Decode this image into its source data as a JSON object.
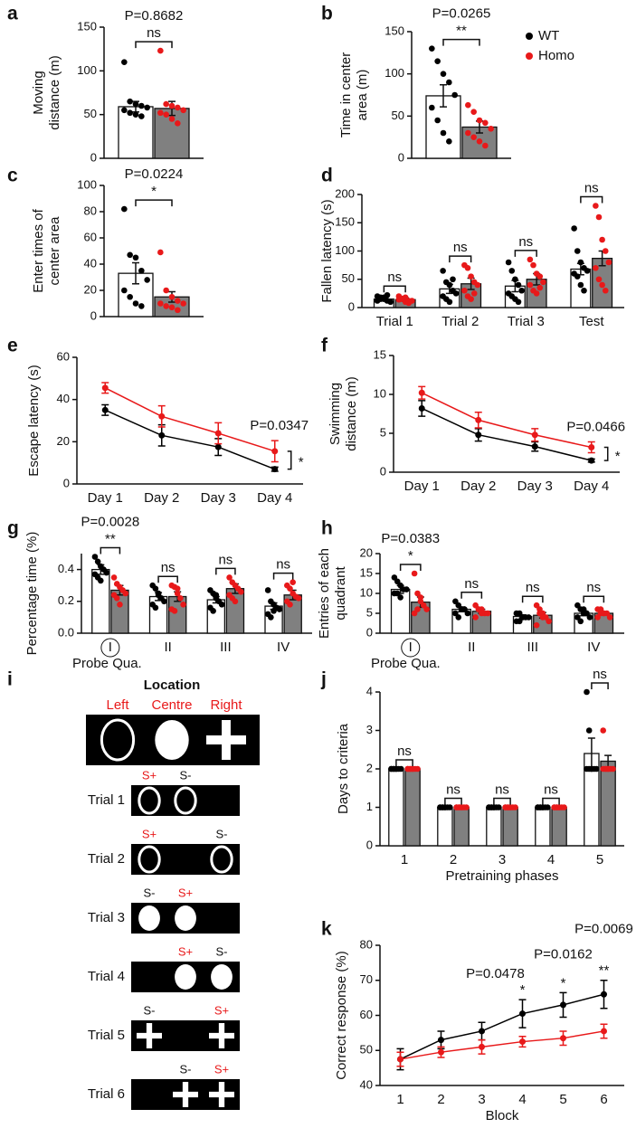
{
  "chart_data": [
    {
      "panel": "a",
      "type": "bar",
      "ylabel": [
        "Moving",
        "distance (m)"
      ],
      "categories": [
        null
      ],
      "ylim": [
        0,
        150
      ],
      "yticks": [
        0,
        50,
        100,
        150
      ],
      "legend": false,
      "series": [
        {
          "name": "WT",
          "color": "#000000",
          "bar_color": "#ffffff",
          "values": [
            59
          ],
          "errors": [
            6
          ],
          "points": [
            [
              110,
              65,
              62,
              60,
              58,
              55,
              52,
              50,
              48
            ]
          ]
        },
        {
          "name": "Homo",
          "color": "#e8191a",
          "bar_color": "#808080",
          "values": [
            57
          ],
          "errors": [
            8
          ],
          "points": [
            [
              123,
              62,
              60,
              58,
              55,
              52,
              50,
              45,
              40
            ]
          ]
        }
      ],
      "brackets": [
        {
          "p": "P=0.8682",
          "label": "ns"
        }
      ]
    },
    {
      "panel": "b",
      "type": "bar",
      "ylabel": [
        "Time in center",
        "area (m)"
      ],
      "categories": [
        null
      ],
      "ylim": [
        0,
        150
      ],
      "yticks": [
        0,
        50,
        100,
        150
      ],
      "legend": true,
      "series": [
        {
          "name": "WT",
          "color": "#000000",
          "bar_color": "#ffffff",
          "values": [
            74
          ],
          "errors": [
            13
          ],
          "points": [
            [
              130,
              115,
              100,
              90,
              75,
              60,
              45,
              30,
              20
            ]
          ]
        },
        {
          "name": "Homo",
          "color": "#e8191a",
          "bar_color": "#808080",
          "values": [
            37
          ],
          "errors": [
            7
          ],
          "points": [
            [
              63,
              55,
              45,
              42,
              35,
              30,
              25,
              20,
              15
            ]
          ]
        }
      ],
      "brackets": [
        {
          "p": "P=0.0265",
          "label": "**"
        }
      ]
    },
    {
      "panel": "c",
      "type": "bar",
      "ylabel": [
        "Enter times of",
        "center area"
      ],
      "categories": [
        null
      ],
      "ylim": [
        0,
        100
      ],
      "yticks": [
        0,
        20,
        40,
        60,
        80,
        100
      ],
      "legend": false,
      "series": [
        {
          "name": "WT",
          "color": "#000000",
          "bar_color": "#ffffff",
          "values": [
            33
          ],
          "errors": [
            8
          ],
          "points": [
            [
              82,
              47,
              45,
              35,
              28,
              20,
              15,
              10,
              8
            ]
          ]
        },
        {
          "name": "Homo",
          "color": "#e8191a",
          "bar_color": "#808080",
          "values": [
            15
          ],
          "errors": [
            4
          ],
          "points": [
            [
              49,
              20,
              15,
              12,
              10,
              10,
              8,
              7,
              5
            ]
          ]
        }
      ],
      "brackets": [
        {
          "p": "P=0.0224",
          "label": "*"
        }
      ]
    },
    {
      "panel": "d",
      "type": "bar",
      "ylabel": [
        "Fallen latency (s)"
      ],
      "categories": [
        "Trial 1",
        "Trial 2",
        "Trial 3",
        "Test"
      ],
      "ylim": [
        0,
        200
      ],
      "yticks": [
        0,
        50,
        100,
        150,
        200
      ],
      "legend": false,
      "series": [
        {
          "name": "WT",
          "color": "#000000",
          "bar_color": "#ffffff",
          "values": [
            15,
            33,
            38,
            68
          ],
          "errors": [
            3,
            8,
            10,
            10
          ],
          "points": [
            [
              20,
              18,
              15,
              12,
              10,
              12,
              15,
              18,
              22
            ],
            [
              65,
              45,
              40,
              30,
              25,
              20,
              15,
              10,
              50
            ],
            [
              80,
              65,
              50,
              40,
              30,
              25,
              20,
              15,
              10
            ],
            [
              140,
              100,
              80,
              70,
              65,
              60,
              55,
              40,
              30
            ]
          ]
        },
        {
          "name": "Homo",
          "color": "#e8191a",
          "bar_color": "#808080",
          "values": [
            14,
            42,
            50,
            87
          ],
          "errors": [
            3,
            10,
            10,
            13
          ],
          "points": [
            [
              20,
              15,
              10,
              8,
              12,
              14,
              16,
              18,
              12
            ],
            [
              75,
              70,
              55,
              45,
              40,
              30,
              20,
              15,
              25
            ],
            [
              85,
              75,
              60,
              55,
              45,
              40,
              30,
              25,
              35
            ],
            [
              180,
              160,
              120,
              100,
              80,
              70,
              50,
              40,
              30
            ]
          ]
        }
      ],
      "brackets": [
        {
          "label": "ns"
        },
        {
          "label": "ns"
        },
        {
          "label": "ns"
        },
        {
          "label": "ns"
        }
      ]
    },
    {
      "panel": "e",
      "type": "line",
      "ylabel": [
        "Escape latency (s)"
      ],
      "categories": [
        "Day 1",
        "Day 2",
        "Day 3",
        "Day 4"
      ],
      "ylim": [
        0,
        60
      ],
      "yticks": [
        0,
        20,
        40,
        60
      ],
      "legend": false,
      "series": [
        {
          "name": "WT",
          "color": "#000000",
          "values": [
            35,
            23,
            17.5,
            7
          ],
          "errors": [
            2.5,
            5,
            4,
            1
          ]
        },
        {
          "name": "Homo",
          "color": "#e8191a",
          "values": [
            45.5,
            32,
            24,
            15.5
          ],
          "errors": [
            2.5,
            5,
            5,
            5
          ]
        }
      ],
      "comparison": {
        "p": "P=0.0347",
        "label": "*"
      }
    },
    {
      "panel": "f",
      "type": "line",
      "ylabel": [
        "Swimming",
        "distance (m)"
      ],
      "categories": [
        "Day 1",
        "Day 2",
        "Day 3",
        "Day 4"
      ],
      "ylim": [
        0,
        15
      ],
      "yticks": [
        0,
        5,
        10,
        15
      ],
      "legend": false,
      "series": [
        {
          "name": "WT",
          "color": "#000000",
          "values": [
            8.2,
            4.8,
            3.3,
            1.5
          ],
          "errors": [
            1,
            0.8,
            0.6,
            0.2
          ]
        },
        {
          "name": "Homo",
          "color": "#e8191a",
          "values": [
            10.2,
            6.7,
            4.8,
            3.2
          ],
          "errors": [
            0.8,
            1,
            0.8,
            0.7
          ]
        }
      ],
      "comparison": {
        "p": "P=0.0466",
        "label": "*"
      }
    },
    {
      "panel": "g",
      "type": "bar",
      "ylabel": [
        "Percentage time (%)"
      ],
      "xlabel": "Probe Qua.",
      "categories": [
        "I",
        "II",
        "III",
        "IV"
      ],
      "circled": [
        true,
        false,
        false,
        false
      ],
      "ylim": [
        0,
        0.5
      ],
      "yticks": [
        {
          "value": 0,
          "label": "0.0"
        },
        0.2,
        0.4
      ],
      "legend": false,
      "series": [
        {
          "name": "WT",
          "color": "#000000",
          "bar_color": "#ffffff",
          "values": [
            0.4,
            0.23,
            0.21,
            0.17
          ],
          "errors": [
            0.03,
            0.025,
            0.02,
            0.02
          ],
          "points": [
            [
              0.48,
              0.45,
              0.42,
              0.4,
              0.38,
              0.37,
              0.35,
              0.33
            ],
            [
              0.3,
              0.28,
              0.25,
              0.22,
              0.2,
              0.18,
              0.16,
              0.24
            ],
            [
              0.27,
              0.25,
              0.22,
              0.2,
              0.18,
              0.16,
              0.14,
              0.24
            ],
            [
              0.27,
              0.2,
              0.18,
              0.16,
              0.15,
              0.12,
              0.1,
              0.14
            ]
          ]
        },
        {
          "name": "Homo",
          "color": "#e8191a",
          "bar_color": "#808080",
          "values": [
            0.27,
            0.23,
            0.28,
            0.24
          ],
          "errors": [
            0.03,
            0.03,
            0.03,
            0.03
          ],
          "points": [
            [
              0.35,
              0.31,
              0.29,
              0.27,
              0.25,
              0.24,
              0.22,
              0.18
            ],
            [
              0.3,
              0.29,
              0.25,
              0.22,
              0.18,
              0.15,
              0.14,
              0.28
            ],
            [
              0.35,
              0.32,
              0.3,
              0.28,
              0.26,
              0.24,
              0.22,
              0.2
            ],
            [
              0.3,
              0.28,
              0.25,
              0.23,
              0.22,
              0.2,
              0.18,
              0.32
            ]
          ]
        }
      ],
      "brackets": [
        {
          "p": "P=0.0028",
          "label": "**"
        },
        {
          "label": "ns"
        },
        {
          "label": "ns"
        },
        {
          "label": "ns"
        }
      ]
    },
    {
      "panel": "h",
      "type": "bar",
      "ylabel": [
        "Entries of each",
        "quadrant"
      ],
      "xlabel": "Probe Qua.",
      "categories": [
        "I",
        "II",
        "III",
        "IV"
      ],
      "circled": [
        true,
        false,
        false,
        false
      ],
      "ylim": [
        0,
        20
      ],
      "yticks": [
        0,
        5,
        10,
        15,
        20
      ],
      "legend": false,
      "series": [
        {
          "name": "WT",
          "color": "#000000",
          "bar_color": "#ffffff",
          "values": [
            11,
            6,
            4.2,
            5
          ],
          "errors": [
            1,
            0.6,
            0.4,
            0.6
          ],
          "points": [
            [
              14,
              13,
              12,
              11,
              11,
              10,
              10,
              9
            ],
            [
              8,
              7,
              6,
              6,
              5,
              5,
              4,
              6
            ],
            [
              5,
              5,
              4,
              4,
              4,
              3,
              3,
              4
            ],
            [
              7,
              6,
              5,
              5,
              4,
              4,
              3,
              6
            ]
          ]
        },
        {
          "name": "Homo",
          "color": "#e8191a",
          "bar_color": "#808080",
          "values": [
            7.8,
            5.5,
            4.5,
            5
          ],
          "errors": [
            1.3,
            0.5,
            0.7,
            0.4
          ],
          "points": [
            [
              15,
              10,
              8,
              7,
              6,
              5,
              6,
              9
            ],
            [
              7,
              6,
              6,
              5,
              5,
              4,
              6,
              5
            ],
            [
              7,
              6,
              5,
              4,
              3,
              2,
              5,
              4
            ],
            [
              6,
              6,
              5,
              5,
              4,
              4,
              5,
              5
            ]
          ]
        }
      ],
      "brackets": [
        {
          "p": "P=0.0383",
          "label": "*"
        },
        {
          "label": "ns"
        },
        {
          "label": "ns"
        },
        {
          "label": "ns"
        }
      ]
    },
    {
      "panel": "j",
      "type": "bar",
      "ylabel": [
        "Days to criteria"
      ],
      "xlabel": "Pretraining phases",
      "categories": [
        "1",
        "2",
        "3",
        "4",
        "5"
      ],
      "ylim": [
        0,
        4
      ],
      "yticks": [
        0,
        1,
        2,
        3,
        4
      ],
      "legend": false,
      "series": [
        {
          "name": "WT",
          "color": "#000000",
          "bar_color": "#ffffff",
          "values": [
            2,
            1,
            1,
            1,
            2.4
          ],
          "errors": [
            0,
            0,
            0,
            0,
            0.4
          ],
          "points": [
            [
              2,
              2,
              2,
              2,
              2,
              2,
              2,
              2
            ],
            [
              1,
              1,
              1,
              1,
              1,
              1,
              1,
              1
            ],
            [
              1,
              1,
              1,
              1,
              1,
              1,
              1,
              1
            ],
            [
              1,
              1,
              1,
              1,
              1,
              1,
              1,
              1
            ],
            [
              4,
              3,
              2,
              2,
              2,
              2,
              2,
              2
            ]
          ]
        },
        {
          "name": "Homo",
          "color": "#e8191a",
          "bar_color": "#808080",
          "values": [
            2,
            1,
            1,
            1,
            2.2
          ],
          "errors": [
            0,
            0,
            0,
            0,
            0.15
          ],
          "points": [
            [
              2,
              2,
              2,
              2,
              2,
              2,
              2,
              2
            ],
            [
              1,
              1,
              1,
              1,
              1,
              1,
              1,
              1
            ],
            [
              1,
              1,
              1,
              1,
              1,
              1,
              1,
              1
            ],
            [
              1,
              1,
              1,
              1,
              1,
              1,
              1,
              1
            ],
            [
              3,
              2,
              2,
              2,
              2,
              2,
              2,
              2
            ]
          ]
        }
      ],
      "brackets": [
        {
          "label": "ns"
        },
        {
          "label": "ns"
        },
        {
          "label": "ns"
        },
        {
          "label": "ns"
        },
        {
          "label": "ns"
        }
      ]
    },
    {
      "panel": "k",
      "type": "line",
      "ylabel": [
        "Correct response (%)"
      ],
      "xlabel": "Block",
      "categories": [
        "1",
        "2",
        "3",
        "4",
        "5",
        "6"
      ],
      "ylim": [
        40,
        80
      ],
      "yticks": [
        40,
        50,
        60,
        70,
        80
      ],
      "legend": false,
      "series": [
        {
          "name": "WT",
          "color": "#000000",
          "values": [
            47.5,
            53,
            55.5,
            60.5,
            63,
            66
          ],
          "errors": [
            3,
            2.5,
            2.5,
            4,
            3.5,
            4
          ]
        },
        {
          "name": "Homo",
          "color": "#e8191a",
          "values": [
            47.5,
            49.5,
            51,
            52.5,
            53.5,
            55.5
          ],
          "errors": [
            2,
            1.5,
            2,
            1.5,
            2,
            2
          ]
        }
      ],
      "annotations": [
        null,
        null,
        null,
        {
          "p": "P=0.0478",
          "label": "*"
        },
        {
          "p": "P=0.0162",
          "label": "*"
        },
        {
          "p": "P=0.0069",
          "label": "**"
        }
      ]
    }
  ],
  "panel_i": {
    "panel": "i",
    "title": "Location",
    "positions": [
      "Left",
      "Centre",
      "Right"
    ],
    "positions_color": "#e8191a",
    "highlight": "S+",
    "highlight_color": "#e8191a",
    "trials": [
      {
        "label": "Trial 1",
        "cues": [
          "S+",
          "S-",
          null
        ]
      },
      {
        "label": "Trial 2",
        "cues": [
          "S+",
          null,
          "S-"
        ]
      },
      {
        "label": "Trial 3",
        "cues": [
          "S-",
          "S+",
          null
        ]
      },
      {
        "label": "Trial 4",
        "cues": [
          null,
          "S+",
          "S-"
        ]
      },
      {
        "label": "Trial 5",
        "cues": [
          "S-",
          null,
          "S+"
        ]
      },
      {
        "label": "Trial 6",
        "cues": [
          null,
          "S-",
          "S+"
        ]
      }
    ]
  }
}
